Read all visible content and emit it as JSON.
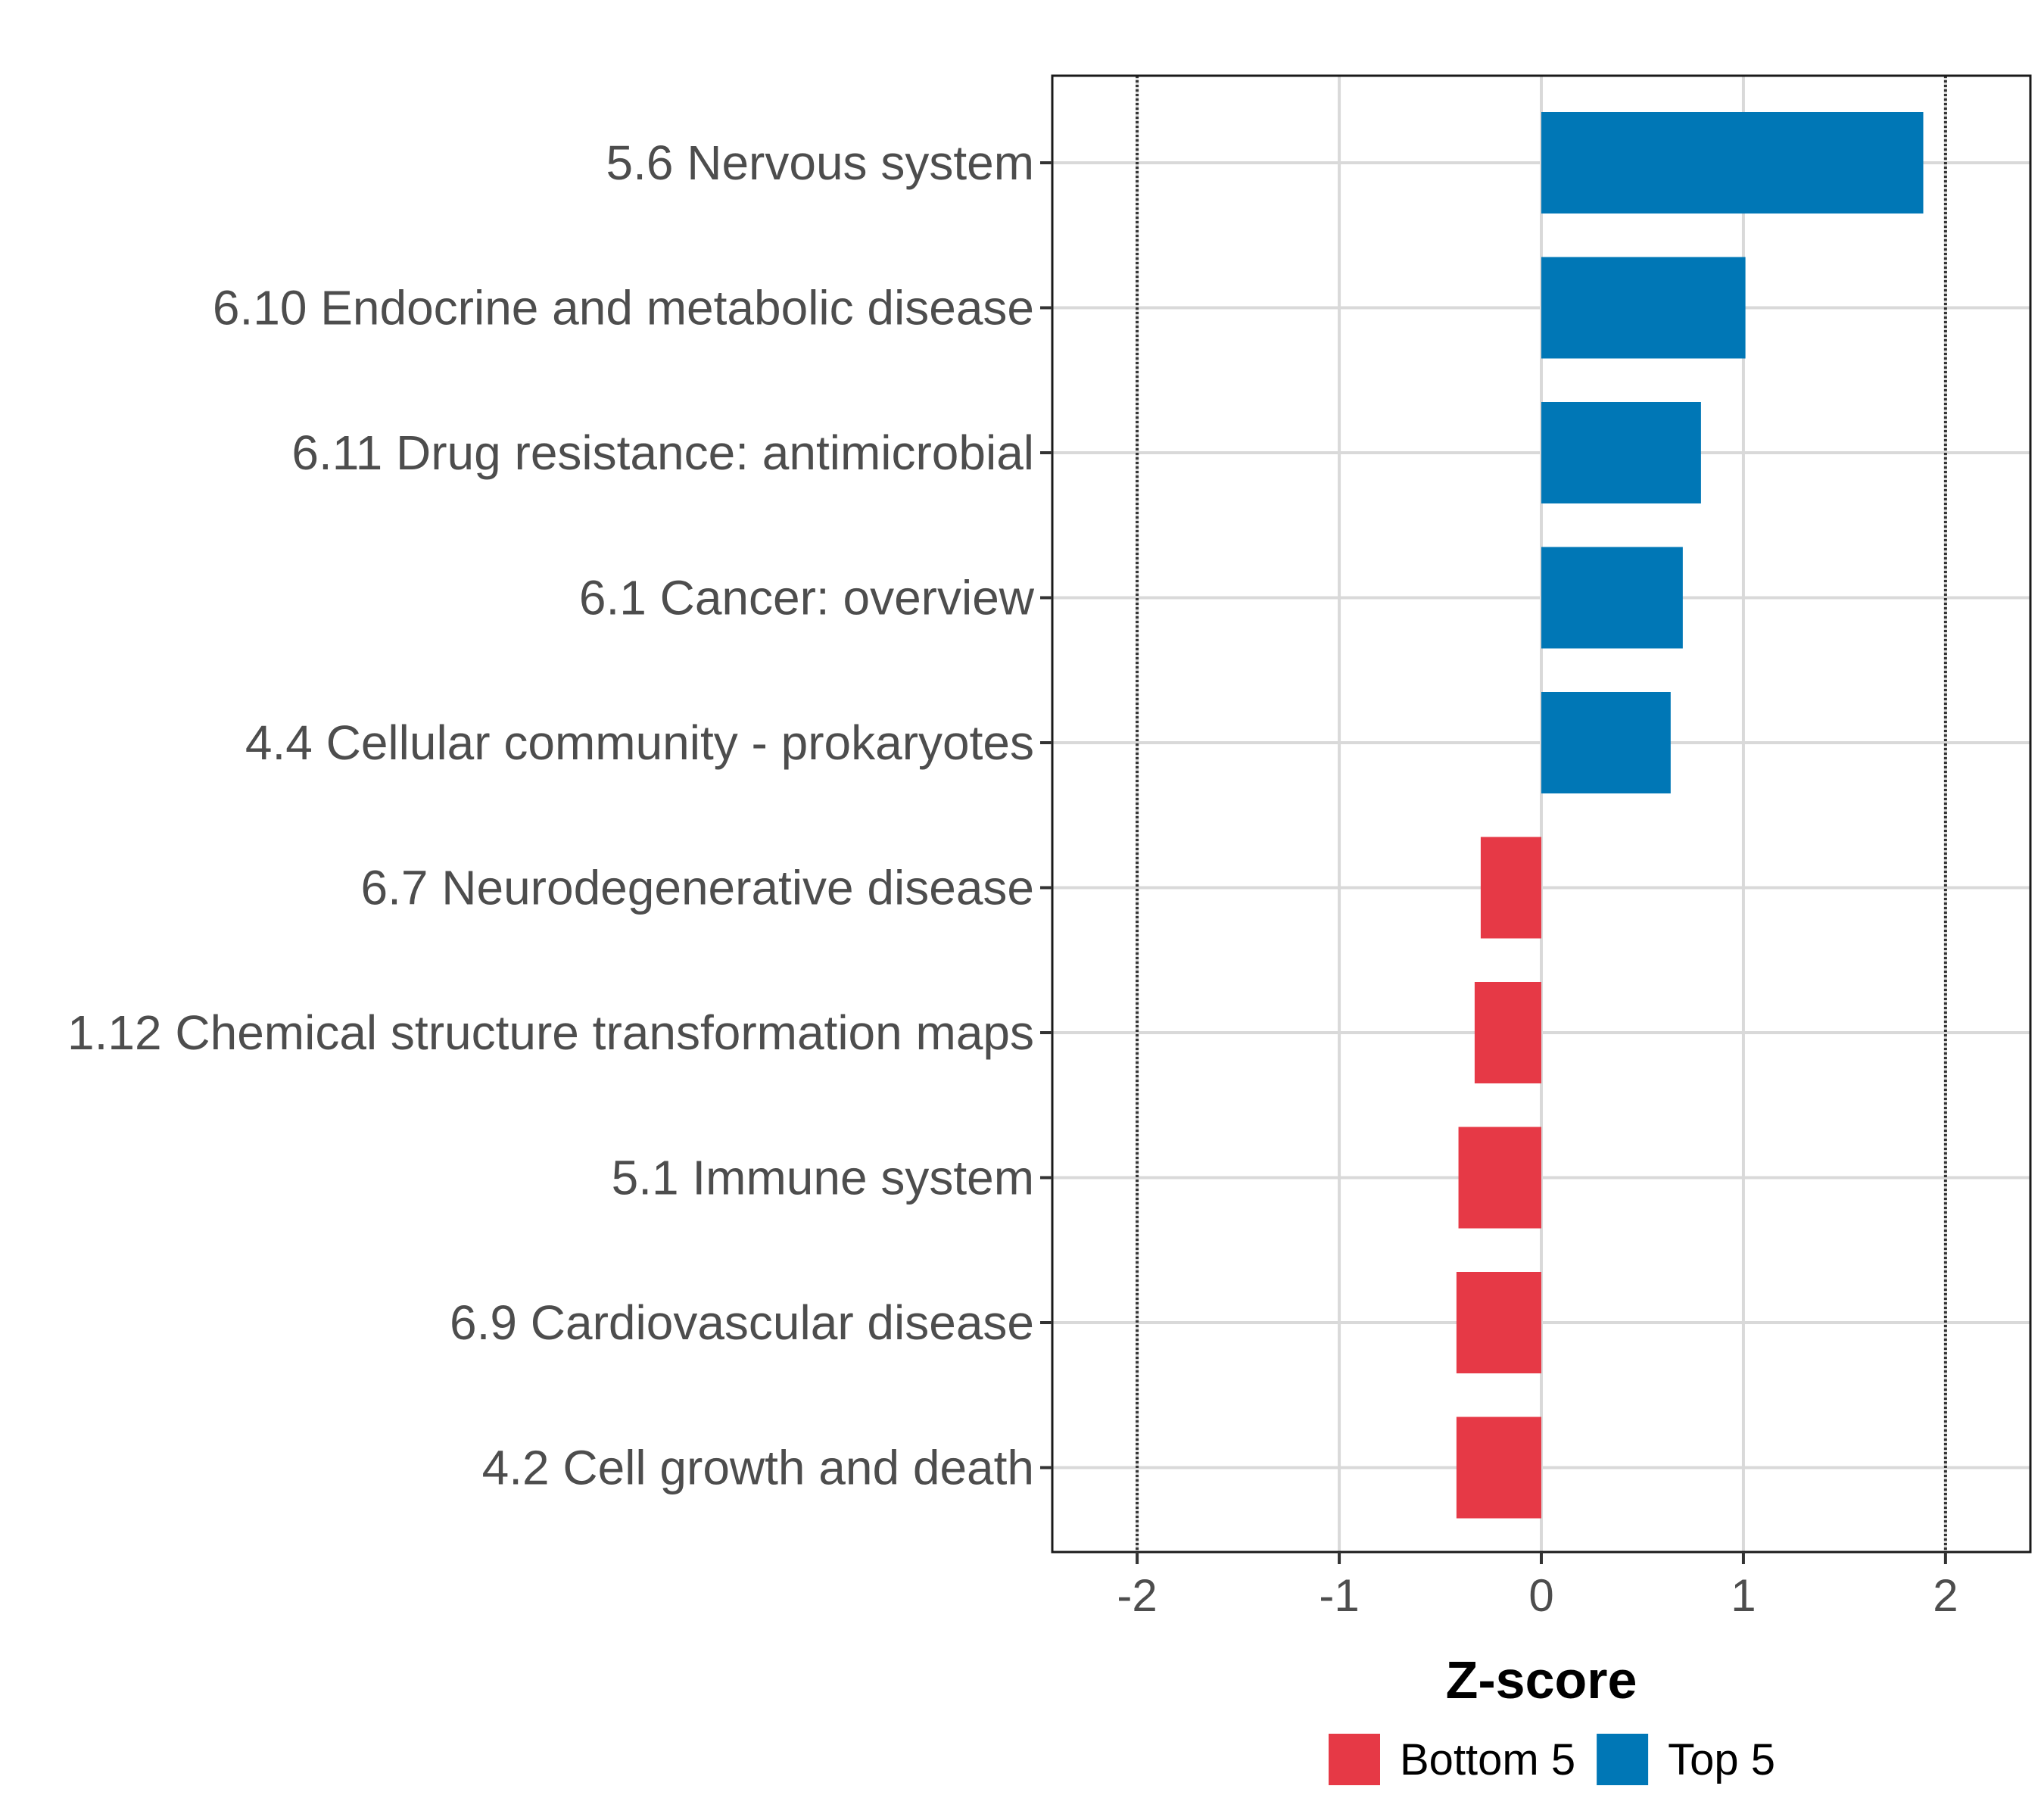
{
  "chart_data": {
    "type": "bar",
    "orientation": "horizontal",
    "categories": [
      "5.6 Nervous system",
      "6.10 Endocrine and metabolic disease",
      "6.11 Drug resistance: antimicrobial",
      "6.1 Cancer: overview",
      "4.4 Cellular community - prokaryotes",
      "6.7 Neurodegenerative disease",
      "1.12 Chemical structure transformation maps",
      "5.1 Immune system",
      "6.9 Cardiovascular disease",
      "4.2 Cell growth and death"
    ],
    "values": [
      1.89,
      1.01,
      0.79,
      0.7,
      0.64,
      -0.3,
      -0.33,
      -0.41,
      -0.42,
      -0.42
    ],
    "groups": [
      "Top 5",
      "Top 5",
      "Top 5",
      "Top 5",
      "Top 5",
      "Bottom 5",
      "Bottom 5",
      "Bottom 5",
      "Bottom 5",
      "Bottom 5"
    ],
    "xlabel": "Z-score",
    "ylabel": "",
    "xlim": [
      -2.42,
      2.42
    ],
    "xticks": [
      -2,
      -1,
      0,
      1,
      2
    ],
    "xtick_labels": [
      "-2",
      "-1",
      "0",
      "1",
      "2"
    ],
    "reference_lines": [
      -2,
      2
    ],
    "grid": true,
    "legend": {
      "position": "bottom",
      "entries": [
        {
          "label": "Bottom 5",
          "color": "#e63946"
        },
        {
          "label": "Top 5",
          "color": "#0077b6"
        }
      ]
    }
  }
}
